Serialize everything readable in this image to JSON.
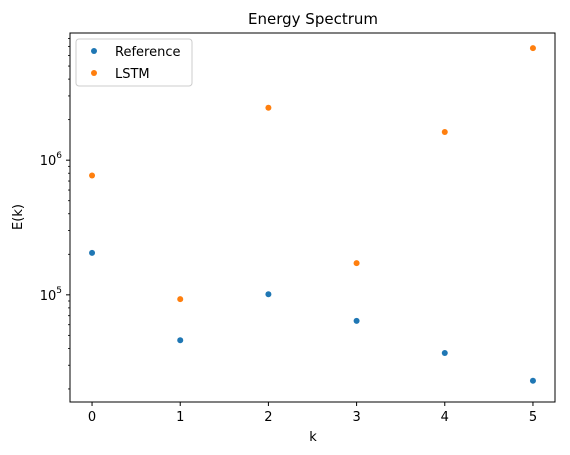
{
  "chart_data": {
    "type": "scatter",
    "title": "Energy Spectrum",
    "xlabel": "k",
    "ylabel": "E(k)",
    "xlim": [
      -0.25,
      5.25
    ],
    "ylim": [
      16000,
      8800000
    ],
    "yscale": "log",
    "x_ticks": [
      0,
      1,
      2,
      3,
      4,
      5
    ],
    "y_major_ticks": [
      100000,
      1000000
    ],
    "y_major_tick_labels": [
      {
        "base": "10",
        "exp": "5"
      },
      {
        "base": "10",
        "exp": "6"
      }
    ],
    "legend_position": "upper left",
    "grid": false,
    "series": [
      {
        "name": "Reference",
        "color": "#1f77b4",
        "x": [
          0,
          1,
          2,
          3,
          4,
          5
        ],
        "y": [
          205000,
          46000,
          101000,
          64000,
          37000,
          23000
        ]
      },
      {
        "name": "LSTM",
        "color": "#ff7f0e",
        "x": [
          0,
          1,
          2,
          3,
          4,
          5
        ],
        "y": [
          770000,
          93000,
          2450000,
          172000,
          1620000,
          6800000
        ]
      }
    ]
  }
}
